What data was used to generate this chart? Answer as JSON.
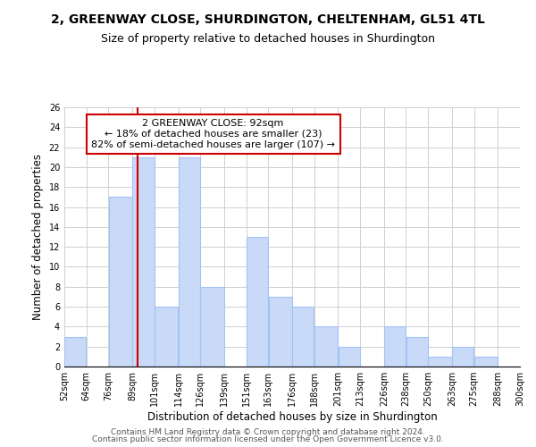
{
  "title": "2, GREENWAY CLOSE, SHURDINGTON, CHELTENHAM, GL51 4TL",
  "subtitle": "Size of property relative to detached houses in Shurdington",
  "xlabel": "Distribution of detached houses by size in Shurdington",
  "ylabel": "Number of detached properties",
  "bin_edges": [
    52,
    64,
    76,
    89,
    101,
    114,
    126,
    139,
    151,
    163,
    176,
    188,
    201,
    213,
    226,
    238,
    250,
    263,
    275,
    288,
    300
  ],
  "counts": [
    3,
    0,
    17,
    21,
    6,
    21,
    8,
    0,
    13,
    7,
    6,
    4,
    2,
    0,
    4,
    3,
    1,
    2,
    1,
    0
  ],
  "bar_color": "#c9daf8",
  "bar_edge_color": "#a4c2f4",
  "property_line_x": 92,
  "property_line_color": "#cc0000",
  "annotation_text": "2 GREENWAY CLOSE: 92sqm\n← 18% of detached houses are smaller (23)\n82% of semi-detached houses are larger (107) →",
  "annotation_box_color": "#ffffff",
  "annotation_box_edge_color": "#cc0000",
  "ylim": [
    0,
    26
  ],
  "yticks": [
    0,
    2,
    4,
    6,
    8,
    10,
    12,
    14,
    16,
    18,
    20,
    22,
    24,
    26
  ],
  "tick_labels": [
    "52sqm",
    "64sqm",
    "76sqm",
    "89sqm",
    "101sqm",
    "114sqm",
    "126sqm",
    "139sqm",
    "151sqm",
    "163sqm",
    "176sqm",
    "188sqm",
    "201sqm",
    "213sqm",
    "226sqm",
    "238sqm",
    "250sqm",
    "263sqm",
    "275sqm",
    "288sqm",
    "300sqm"
  ],
  "footer1": "Contains HM Land Registry data © Crown copyright and database right 2024.",
  "footer2": "Contains public sector information licensed under the Open Government Licence v3.0.",
  "title_fontsize": 10,
  "subtitle_fontsize": 9,
  "axis_label_fontsize": 8.5,
  "tick_fontsize": 7,
  "annotation_fontsize": 8,
  "footer_fontsize": 6.5
}
